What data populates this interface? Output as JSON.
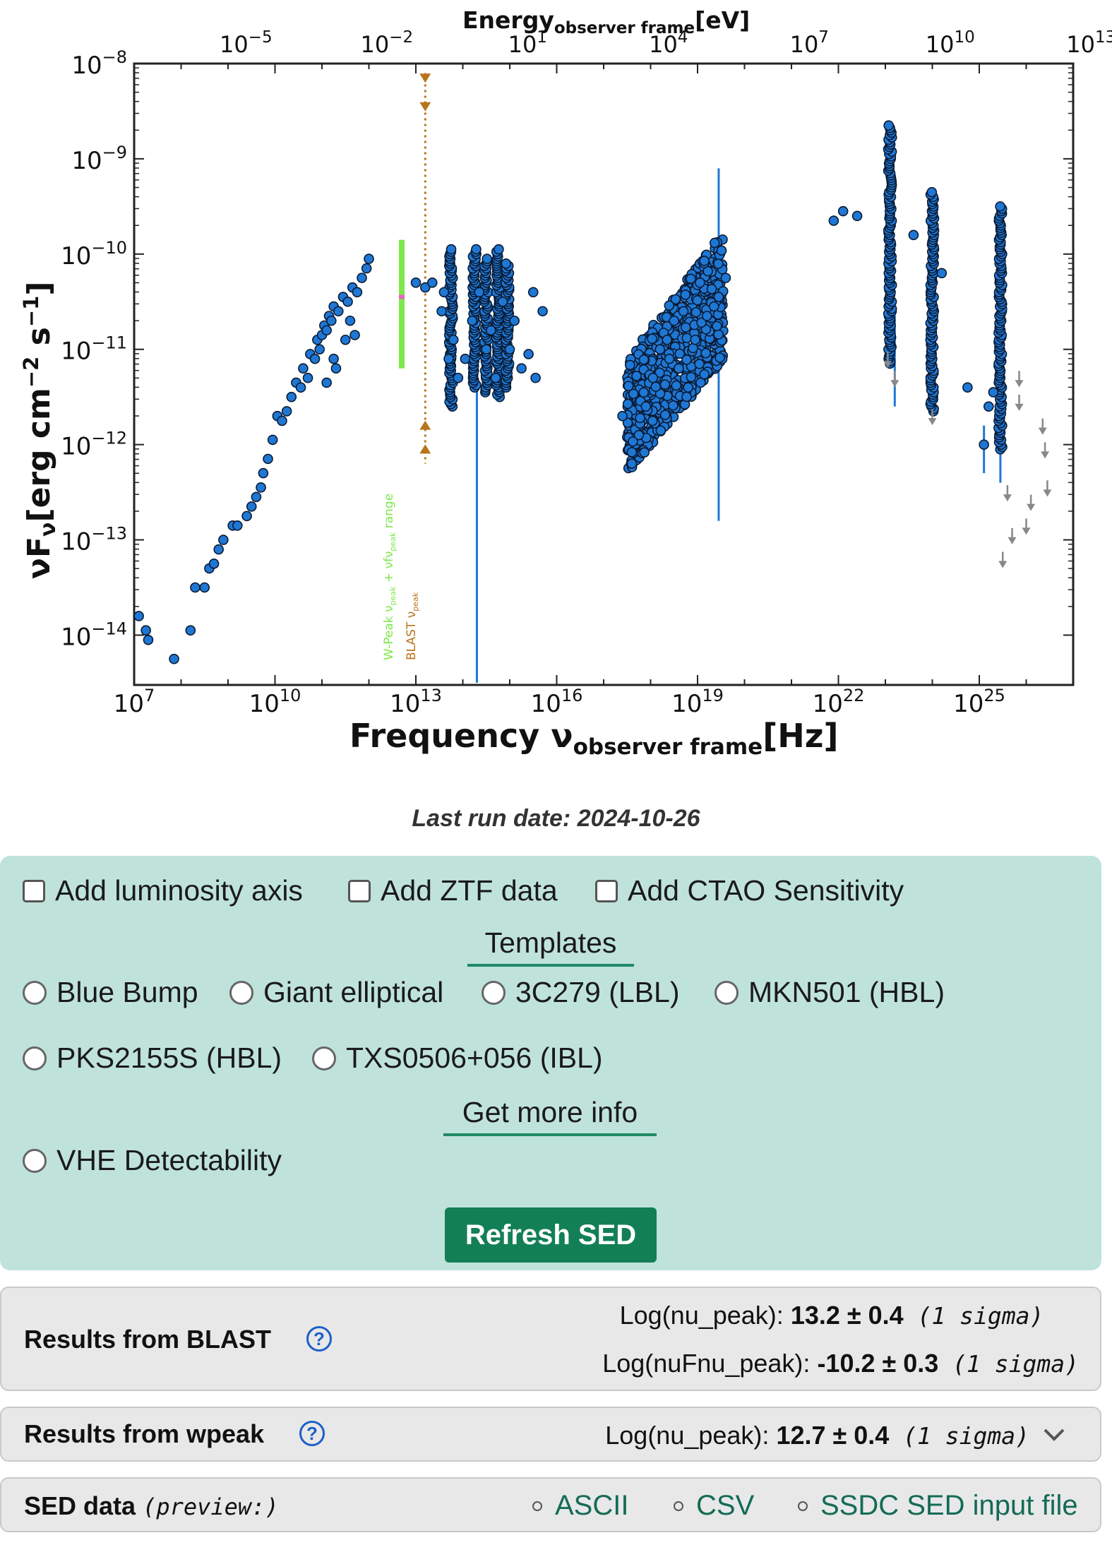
{
  "chart_data": {
    "type": "scatter",
    "title": "",
    "xlabel": "Frequency ν",
    "xlabel_sub": "observer frame",
    "xlabel_unit": "[Hz]",
    "ylabel": "νF",
    "ylabel_sub": "ν",
    "ylabel_unit": "[erg cm",
    "ylabel_unit_exp1": "−2",
    "ylabel_unit_mid": " s",
    "ylabel_unit_exp2": "−1",
    "ylabel_unit_end": "]",
    "top_xlabel": "Energy",
    "top_xlabel_sub": "observer frame",
    "top_xlabel_unit": "[eV]",
    "x_scale": "log",
    "y_scale": "log",
    "xlim": [
      10000000.0,
      1e+27
    ],
    "ylim": [
      3e-15,
      1e-08
    ],
    "x_ticks": [
      {
        "base": "10",
        "exp": "7",
        "v": 7
      },
      {
        "base": "10",
        "exp": "10",
        "v": 10
      },
      {
        "base": "10",
        "exp": "13",
        "v": 13
      },
      {
        "base": "10",
        "exp": "16",
        "v": 16
      },
      {
        "base": "10",
        "exp": "19",
        "v": 19
      },
      {
        "base": "10",
        "exp": "22",
        "v": 22
      },
      {
        "base": "10",
        "exp": "25",
        "v": 25
      }
    ],
    "y_ticks": [
      {
        "base": "10",
        "exp": "−8",
        "v": -8
      },
      {
        "base": "10",
        "exp": "−9",
        "v": -9
      },
      {
        "base": "10",
        "exp": "−10",
        "v": -10
      },
      {
        "base": "10",
        "exp": "−11",
        "v": -11
      },
      {
        "base": "10",
        "exp": "−12",
        "v": -12
      },
      {
        "base": "10",
        "exp": "−13",
        "v": -13
      },
      {
        "base": "10",
        "exp": "−14",
        "v": -14
      }
    ],
    "top_ticks": [
      {
        "base": "10",
        "exp": "−5",
        "v": -5
      },
      {
        "base": "10",
        "exp": "−2",
        "v": -2
      },
      {
        "base": "10",
        "exp": "1",
        "v": 1
      },
      {
        "base": "10",
        "exp": "4",
        "v": 4
      },
      {
        "base": "10",
        "exp": "7",
        "v": 7
      },
      {
        "base": "10",
        "exp": "10",
        "v": 10
      },
      {
        "base": "10",
        "exp": "13",
        "v": 13
      }
    ],
    "series": [
      {
        "color": "#1f77d4",
        "points": [
          [
            7.1,
            -13.8
          ],
          [
            7.25,
            -13.95
          ],
          [
            7.3,
            -14.05
          ],
          [
            7.85,
            -14.25
          ],
          [
            8.2,
            -13.95
          ],
          [
            8.3,
            -13.5
          ],
          [
            8.5,
            -13.5
          ],
          [
            8.6,
            -13.3
          ],
          [
            8.7,
            -13.25
          ],
          [
            8.8,
            -13.1
          ],
          [
            8.9,
            -13
          ],
          [
            9.1,
            -12.85
          ],
          [
            9.2,
            -12.85
          ],
          [
            9.4,
            -12.75
          ],
          [
            9.5,
            -12.65
          ],
          [
            9.6,
            -12.55
          ],
          [
            9.7,
            -12.45
          ],
          [
            9.75,
            -12.3
          ],
          [
            9.85,
            -12.15
          ],
          [
            9.95,
            -11.95
          ],
          [
            10.05,
            -11.7
          ],
          [
            10.15,
            -11.75
          ],
          [
            10.25,
            -11.65
          ],
          [
            10.35,
            -11.5
          ],
          [
            10.45,
            -11.35
          ],
          [
            10.55,
            -11.4
          ],
          [
            10.6,
            -11.2
          ],
          [
            10.7,
            -11.3
          ],
          [
            10.75,
            -11.05
          ],
          [
            10.85,
            -11.1
          ],
          [
            10.9,
            -10.9
          ],
          [
            10.95,
            -11
          ],
          [
            11.0,
            -10.85
          ],
          [
            11.05,
            -10.75
          ],
          [
            11.1,
            -10.8
          ],
          [
            11.15,
            -10.65
          ],
          [
            11.2,
            -10.7
          ],
          [
            11.25,
            -10.55
          ],
          [
            11.35,
            -10.6
          ],
          [
            11.45,
            -10.45
          ],
          [
            11.55,
            -10.5
          ],
          [
            11.65,
            -10.35
          ],
          [
            11.75,
            -10.4
          ],
          [
            11.85,
            -10.25
          ],
          [
            11.95,
            -10.15
          ],
          [
            12.0,
            -10.05
          ],
          [
            11.3,
            -11.2
          ],
          [
            11.1,
            -11.35
          ],
          [
            11.5,
            -10.9
          ],
          [
            11.7,
            -10.85
          ],
          [
            11.25,
            -11.1
          ],
          [
            11.6,
            -10.7
          ],
          [
            13.0,
            -10.3
          ],
          [
            13.2,
            -10.35
          ],
          [
            13.35,
            -10.3
          ],
          [
            13.55,
            -10.6
          ],
          [
            13.6,
            -10.4
          ],
          [
            13.7,
            -11.1
          ],
          [
            13.8,
            -10.9
          ],
          [
            13.9,
            -11.3
          ],
          [
            14.05,
            -11.1
          ],
          [
            14.2,
            -10.7
          ],
          [
            14.35,
            -10.4
          ],
          [
            14.5,
            -11.0
          ],
          [
            14.6,
            -10.8
          ],
          [
            14.7,
            -11.3
          ],
          [
            14.85,
            -10.5
          ],
          [
            15.0,
            -11.0
          ],
          [
            15.1,
            -10.7
          ],
          [
            15.25,
            -11.2
          ],
          [
            15.4,
            -11.05
          ],
          [
            15.5,
            -10.4
          ],
          [
            15.55,
            -11.3
          ],
          [
            15.7,
            -10.6
          ],
          [
            17.4,
            -11.7
          ],
          [
            17.6,
            -12.2
          ],
          [
            17.75,
            -11.9
          ],
          [
            17.9,
            -11.6
          ],
          [
            18.05,
            -11.3
          ],
          [
            18.2,
            -11.0
          ],
          [
            18.35,
            -10.9
          ],
          [
            18.5,
            -10.7
          ],
          [
            18.6,
            -11.2
          ],
          [
            18.7,
            -10.6
          ],
          [
            18.8,
            -11.4
          ],
          [
            18.95,
            -10.9
          ],
          [
            19.05,
            -10.3
          ],
          [
            19.2,
            -10.65
          ],
          [
            19.35,
            -10.55
          ],
          [
            19.45,
            -10.45
          ],
          [
            19.6,
            -10.25
          ],
          [
            21.9,
            -9.65
          ],
          [
            22.1,
            -9.55
          ],
          [
            22.4,
            -9.6
          ],
          [
            23.6,
            -9.8
          ],
          [
            24.2,
            -10.2
          ],
          [
            24.75,
            -11.4
          ],
          [
            25.2,
            -11.6
          ],
          [
            25.3,
            -11.45
          ],
          [
            25.1,
            -12.0
          ]
        ],
        "columns": [
          {
            "x": 23.1,
            "ymin": -11.15,
            "ymax": -8.65
          },
          {
            "x": 24.0,
            "ymin": -11.65,
            "ymax": -9.35
          },
          {
            "x": 25.45,
            "ymin": -12.05,
            "ymax": -9.5
          },
          {
            "x": 13.75,
            "ymin": -11.6,
            "ymax": -9.95
          },
          {
            "x": 14.25,
            "ymin": -11.4,
            "ymax": -9.95
          },
          {
            "x": 14.5,
            "ymin": -11.45,
            "ymax": -10.05
          },
          {
            "x": 14.75,
            "ymin": -11.5,
            "ymax": -9.95
          },
          {
            "x": 14.95,
            "ymin": -11.4,
            "ymax": -10.1
          }
        ],
        "blocks": [
          {
            "x0": 17.5,
            "x1": 19.55,
            "ylo0": -12.3,
            "ylo1": -11.1,
            "yhi0": -11.1,
            "yhi1": -9.75
          }
        ]
      }
    ],
    "upper_limits": [
      [
        23.05,
        -11.1
      ],
      [
        23.2,
        -11.3
      ],
      [
        24.0,
        -11.7
      ],
      [
        25.6,
        -12.5
      ],
      [
        25.5,
        -13.2
      ],
      [
        25.85,
        -11.3
      ],
      [
        25.85,
        -11.55
      ],
      [
        26.35,
        -11.8
      ],
      [
        26.4,
        -12.05
      ],
      [
        26.45,
        -12.45
      ],
      [
        26.1,
        -12.6
      ],
      [
        26.0,
        -12.85
      ],
      [
        25.7,
        -12.95
      ]
    ],
    "wpeak_range": {
      "x": 12.7,
      "ymin": -11.2,
      "ymax": -9.85,
      "peak": -10.45
    },
    "blast": {
      "x": 13.2,
      "ymin": -12.2,
      "ymax": -8.1
    },
    "annotations": [
      "W-Peak ν",
      "peak",
      " + νfν",
      "peak",
      " range",
      "BLAST ν",
      "peak"
    ]
  },
  "last_run_label": "Last run date: 2024-10-26",
  "options": {
    "luminosity": "Add luminosity axis",
    "ztf": "Add ZTF data",
    "ctao": "Add CTAO Sensitivity"
  },
  "templates_header": "Templates",
  "templates": {
    "blue_bump": "Blue Bump",
    "giant_elliptical": "Giant elliptical",
    "c3c279": "3C279 (LBL)",
    "mkn501": "MKN501 (HBL)",
    "pks2155s": "PKS2155S (HBL)",
    "txs0506": "TXS0506+056 (IBL)"
  },
  "more_info_header": "Get more info",
  "vhe": "VHE Detectability",
  "refresh_label": "Refresh SED",
  "blast_results": {
    "label": "Results from BLAST",
    "nu_peak_label": "Log(nu_peak): ",
    "nu_peak_value": "13.2 ± 0.4",
    "sigma": " (1 sigma)",
    "nufnu_peak_label": "Log(nuFnu_peak): ",
    "nufnu_peak_value": "-10.2 ± 0.3"
  },
  "wpeak_results": {
    "label": "Results from wpeak",
    "nu_peak_label": "Log(nu_peak): ",
    "nu_peak_value": "12.7 ± 0.4",
    "sigma": " (1 sigma)"
  },
  "sed_data": {
    "label": "SED data",
    "preview": "(preview:)",
    "ascii": "ASCII",
    "csv": "CSV",
    "ssdc": "SSDC SED input file"
  },
  "help_glyph": "?",
  "chevron_icon": "chevron-down-icon"
}
